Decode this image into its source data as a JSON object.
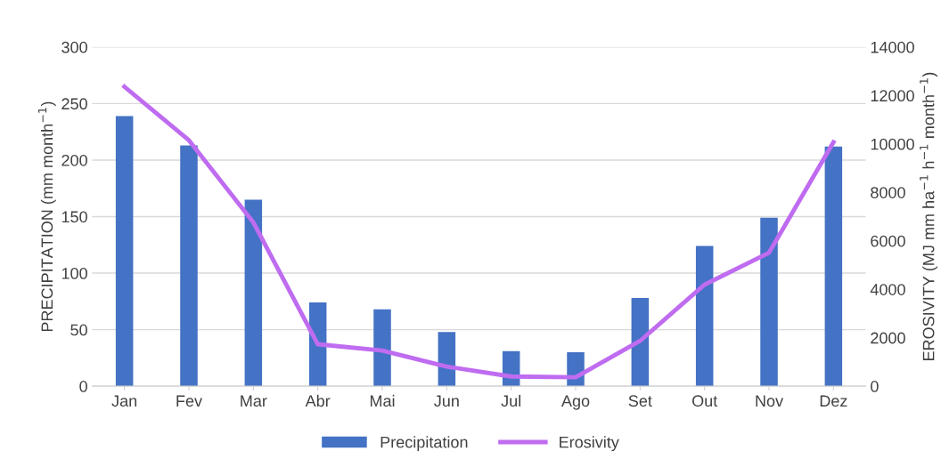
{
  "chart_data": {
    "type": "bar",
    "categories": [
      "Jan",
      "Fev",
      "Mar",
      "Abr",
      "Mai",
      "Jun",
      "Jul",
      "Ago",
      "Set",
      "Out",
      "Nov",
      "Dez"
    ],
    "series": [
      {
        "name": "Precipitation",
        "color": "#4472c4",
        "values": [
          239,
          213,
          165,
          74,
          68,
          48,
          31,
          30,
          78,
          124,
          149,
          212
        ]
      },
      {
        "name": "Erosivity",
        "type": "line",
        "axis": "y2",
        "color": "#bf6cf0",
        "values": [
          12360,
          10150,
          6760,
          1730,
          1470,
          810,
          400,
          370,
          1870,
          4190,
          5510,
          10070
        ]
      }
    ],
    "ylabel": "PRECIPITATION (mm month$^{−1}$)",
    "y2label": "EROSIVITY (MJ mm ha$^{−1}$ h$^{−1}$ month$^{−1}$)",
    "ylim": [
      0,
      300
    ],
    "yticks": [
      0,
      50,
      100,
      150,
      200,
      250,
      300
    ],
    "y2lim": [
      0,
      14000
    ],
    "y2ticks": [
      0,
      2000,
      4000,
      6000,
      8000,
      10000,
      12000,
      14000
    ],
    "grid": "y",
    "legend": "bottom",
    "marker": "none",
    "line_style": "solid"
  }
}
